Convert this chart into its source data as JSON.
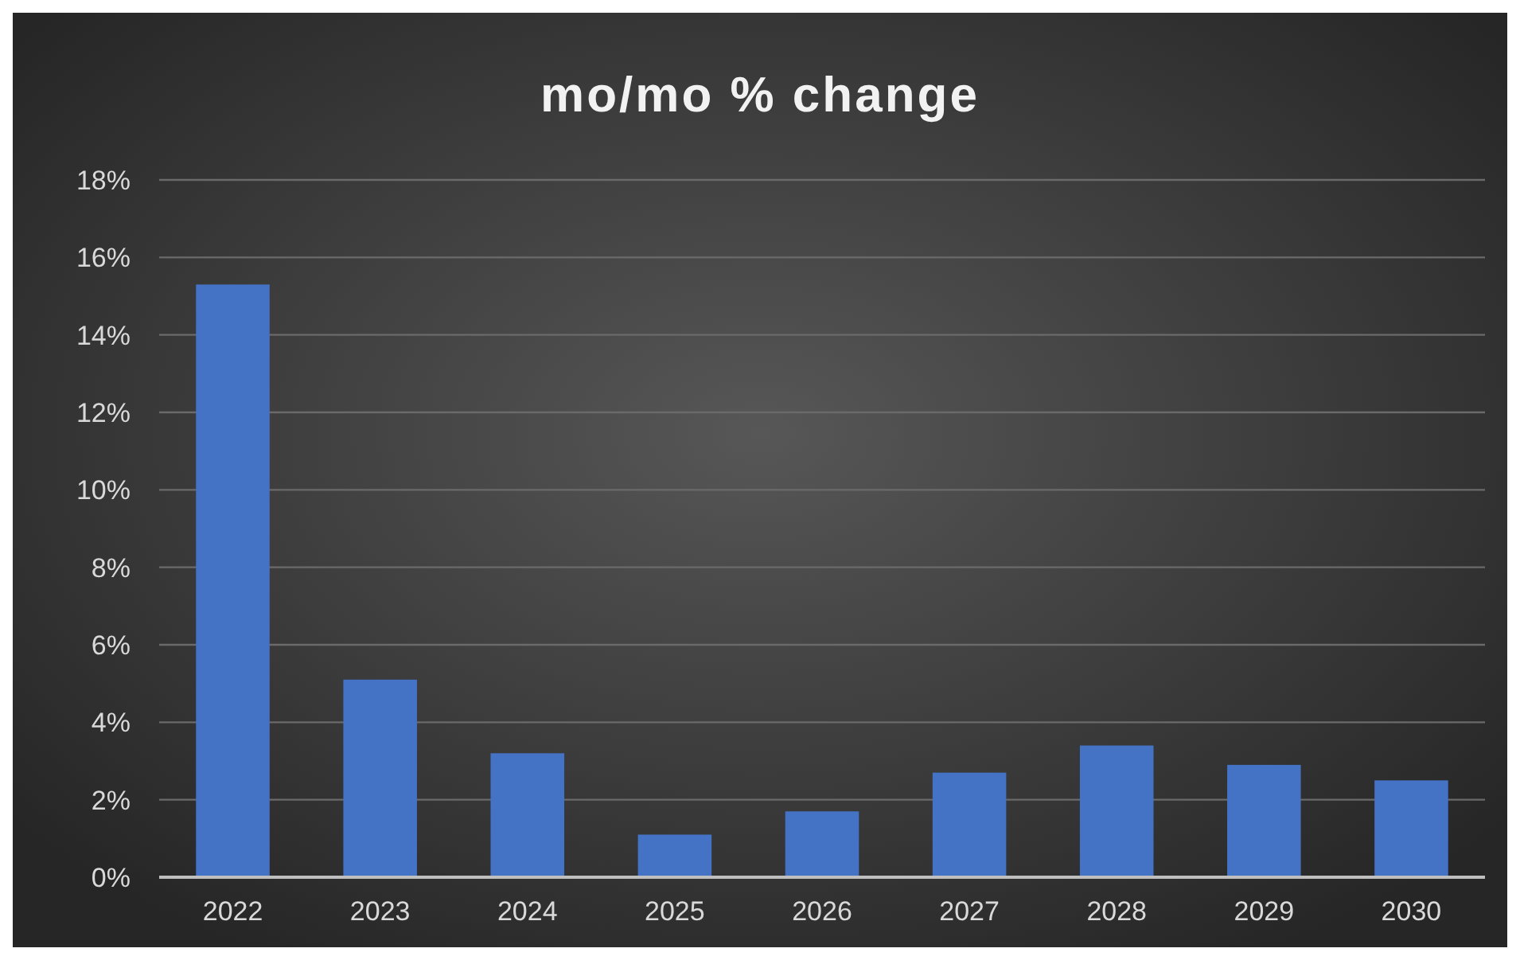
{
  "chart_data": {
    "type": "bar",
    "title": "mo/mo % change",
    "categories": [
      "2022",
      "2023",
      "2024",
      "2025",
      "2026",
      "2027",
      "2028",
      "2029",
      "2030"
    ],
    "values": [
      15.3,
      5.1,
      3.2,
      1.1,
      1.7,
      2.7,
      3.4,
      2.9,
      2.5
    ],
    "color": "#4472c4",
    "ylim": [
      0,
      18
    ],
    "yticks": [
      {
        "value": 0,
        "label": "0%"
      },
      {
        "value": 2,
        "label": "2%"
      },
      {
        "value": 4,
        "label": "4%"
      },
      {
        "value": 6,
        "label": "6%"
      },
      {
        "value": 8,
        "label": "8%"
      },
      {
        "value": 10,
        "label": "10%"
      },
      {
        "value": 12,
        "label": "12%"
      },
      {
        "value": 14,
        "label": "14%"
      },
      {
        "value": 16,
        "label": "16%"
      },
      {
        "value": 18,
        "label": "18%"
      }
    ],
    "grid": "y"
  }
}
